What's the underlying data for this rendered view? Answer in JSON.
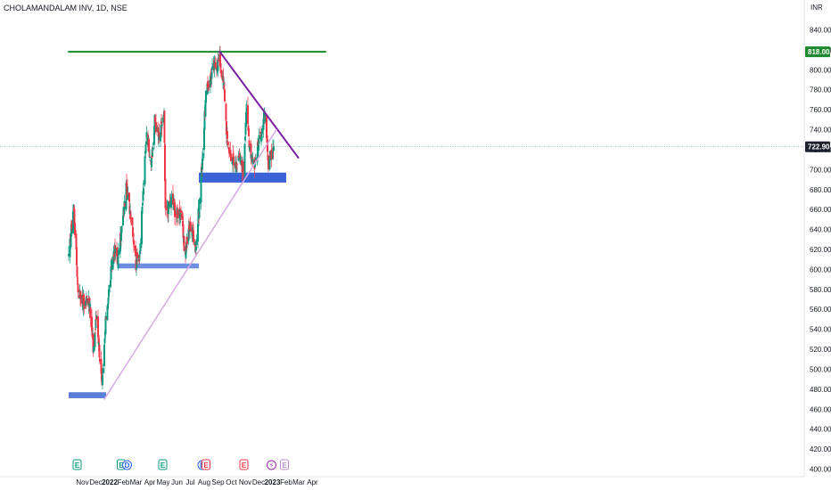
{
  "chart_data": {
    "type": "candlestick",
    "title": "CHOLAMANDALAM INV, 1D, NSE",
    "currency": "INR",
    "ylim": [
      395,
      850
    ],
    "y_ticks": [
      840,
      820,
      800,
      780,
      760,
      740,
      720,
      700,
      680,
      660,
      640,
      620,
      600,
      580,
      560,
      540,
      520,
      500,
      480,
      460,
      440,
      420,
      400
    ],
    "x_ticks": [
      {
        "label": "Nov",
        "date": "2021-11-01"
      },
      {
        "label": "Dec",
        "date": "2021-12-01"
      },
      {
        "label": "2022",
        "date": "2022-01-01",
        "bold": true
      },
      {
        "label": "Feb",
        "date": "2022-02-01"
      },
      {
        "label": "Mar",
        "date": "2022-03-01"
      },
      {
        "label": "Apr",
        "date": "2022-04-01"
      },
      {
        "label": "May",
        "date": "2022-05-01"
      },
      {
        "label": "Jun",
        "date": "2022-06-01"
      },
      {
        "label": "Jul",
        "date": "2022-07-01"
      },
      {
        "label": "Aug",
        "date": "2022-08-01"
      },
      {
        "label": "Sep",
        "date": "2022-09-01"
      },
      {
        "label": "Oct",
        "date": "2022-10-01"
      },
      {
        "label": "Nov",
        "date": "2022-11-01"
      },
      {
        "label": "Dec",
        "date": "2022-12-01"
      },
      {
        "label": "2023",
        "date": "2023-01-01",
        "bold": true
      },
      {
        "label": "Feb",
        "date": "2023-02-01"
      },
      {
        "label": "Mar",
        "date": "2023-03-01"
      },
      {
        "label": "Apr",
        "date": "2023-04-01"
      }
    ],
    "last_price": {
      "label": "722.90",
      "value": 722.9,
      "color": "#1e222d"
    },
    "price_tags": [
      {
        "label": "818.00",
        "value": 818,
        "color": "#1b8a2e"
      }
    ],
    "lines": [
      {
        "name": "resistance-horizontal",
        "from": [
          "2021-10-01",
          818
        ],
        "to": [
          "2023-04-30",
          818
        ],
        "color": "#1b8a2e",
        "width": 2
      },
      {
        "name": "descending-trendline",
        "from": [
          "2022-09-05",
          818
        ],
        "to": [
          "2023-02-28",
          712
        ],
        "color": "#7b1fa2",
        "width": 2
      },
      {
        "name": "ascending-trendline",
        "from": [
          "2021-12-20",
          470
        ],
        "to": [
          "2023-01-10",
          740
        ],
        "color": "#d7a9e3",
        "width": 1.5
      }
    ],
    "zones": [
      {
        "name": "support-zone-480",
        "from": "2021-10-01",
        "to": "2021-12-24",
        "low": 471,
        "high": 477,
        "color": "#5b7fd9"
      },
      {
        "name": "support-zone-604",
        "from": "2022-01-22",
        "to": "2022-07-20",
        "low": 601,
        "high": 606,
        "color": "#6d8ee0"
      },
      {
        "name": "support-zone-695",
        "from": "2022-07-20",
        "to": "2023-02-01",
        "low": 687,
        "high": 697,
        "color": "#3b63d8"
      }
    ],
    "pivots": [
      [
        "2021-10-01",
        610
      ],
      [
        "2021-10-12",
        665
      ],
      [
        "2021-10-22",
        580
      ],
      [
        "2021-11-05",
        565
      ],
      [
        "2021-11-15",
        575
      ],
      [
        "2021-11-25",
        520
      ],
      [
        "2021-12-03",
        555
      ],
      [
        "2021-12-15",
        480
      ],
      [
        "2021-12-24",
        555
      ],
      [
        "2022-01-10",
        620
      ],
      [
        "2022-01-20",
        610
      ],
      [
        "2022-02-07",
        680
      ],
      [
        "2022-02-20",
        650
      ],
      [
        "2022-03-01",
        605
      ],
      [
        "2022-03-10",
        620
      ],
      [
        "2022-03-25",
        740
      ],
      [
        "2022-04-05",
        705
      ],
      [
        "2022-04-12",
        750
      ],
      [
        "2022-04-22",
        730
      ],
      [
        "2022-05-03",
        755
      ],
      [
        "2022-05-06",
        655
      ],
      [
        "2022-05-20",
        670
      ],
      [
        "2022-05-30",
        655
      ],
      [
        "2022-06-10",
        660
      ],
      [
        "2022-06-18",
        615
      ],
      [
        "2022-07-01",
        645
      ],
      [
        "2022-07-14",
        625
      ],
      [
        "2022-07-25",
        690
      ],
      [
        "2022-08-05",
        775
      ],
      [
        "2022-08-20",
        800
      ],
      [
        "2022-09-05",
        810
      ],
      [
        "2022-09-15",
        780
      ],
      [
        "2022-09-22",
        725
      ],
      [
        "2022-10-07",
        705
      ],
      [
        "2022-10-20",
        710
      ],
      [
        "2022-10-28",
        700
      ],
      [
        "2022-11-03",
        760
      ],
      [
        "2022-11-12",
        720
      ],
      [
        "2022-11-22",
        705
      ],
      [
        "2022-12-05",
        735
      ],
      [
        "2022-12-15",
        755
      ],
      [
        "2022-12-23",
        700
      ],
      [
        "2022-12-28",
        715
      ],
      [
        "2023-01-04",
        722.9
      ]
    ],
    "event_markers": [
      {
        "date": "2021-10-20",
        "label": "E",
        "color": "#089981",
        "style": "square"
      },
      {
        "date": "2022-01-27",
        "label": "E",
        "color": "#089981",
        "style": "square"
      },
      {
        "date": "2022-02-09",
        "label": "D",
        "color": "#2962ff",
        "style": "circle"
      },
      {
        "date": "2022-04-30",
        "label": "E",
        "color": "#089981",
        "style": "square"
      },
      {
        "date": "2022-07-28",
        "label": "D",
        "color": "#2962ff",
        "style": "circle"
      },
      {
        "date": "2022-08-05",
        "label": "E",
        "color": "#f23645",
        "style": "square"
      },
      {
        "date": "2022-10-29",
        "label": "E",
        "color": "#f23645",
        "style": "square"
      },
      {
        "date": "2022-12-30",
        "label": "⚡",
        "color": "#9c27b0",
        "style": "circle"
      },
      {
        "date": "2023-01-28",
        "label": "E",
        "color": "#c48ad4",
        "style": "square"
      }
    ]
  }
}
